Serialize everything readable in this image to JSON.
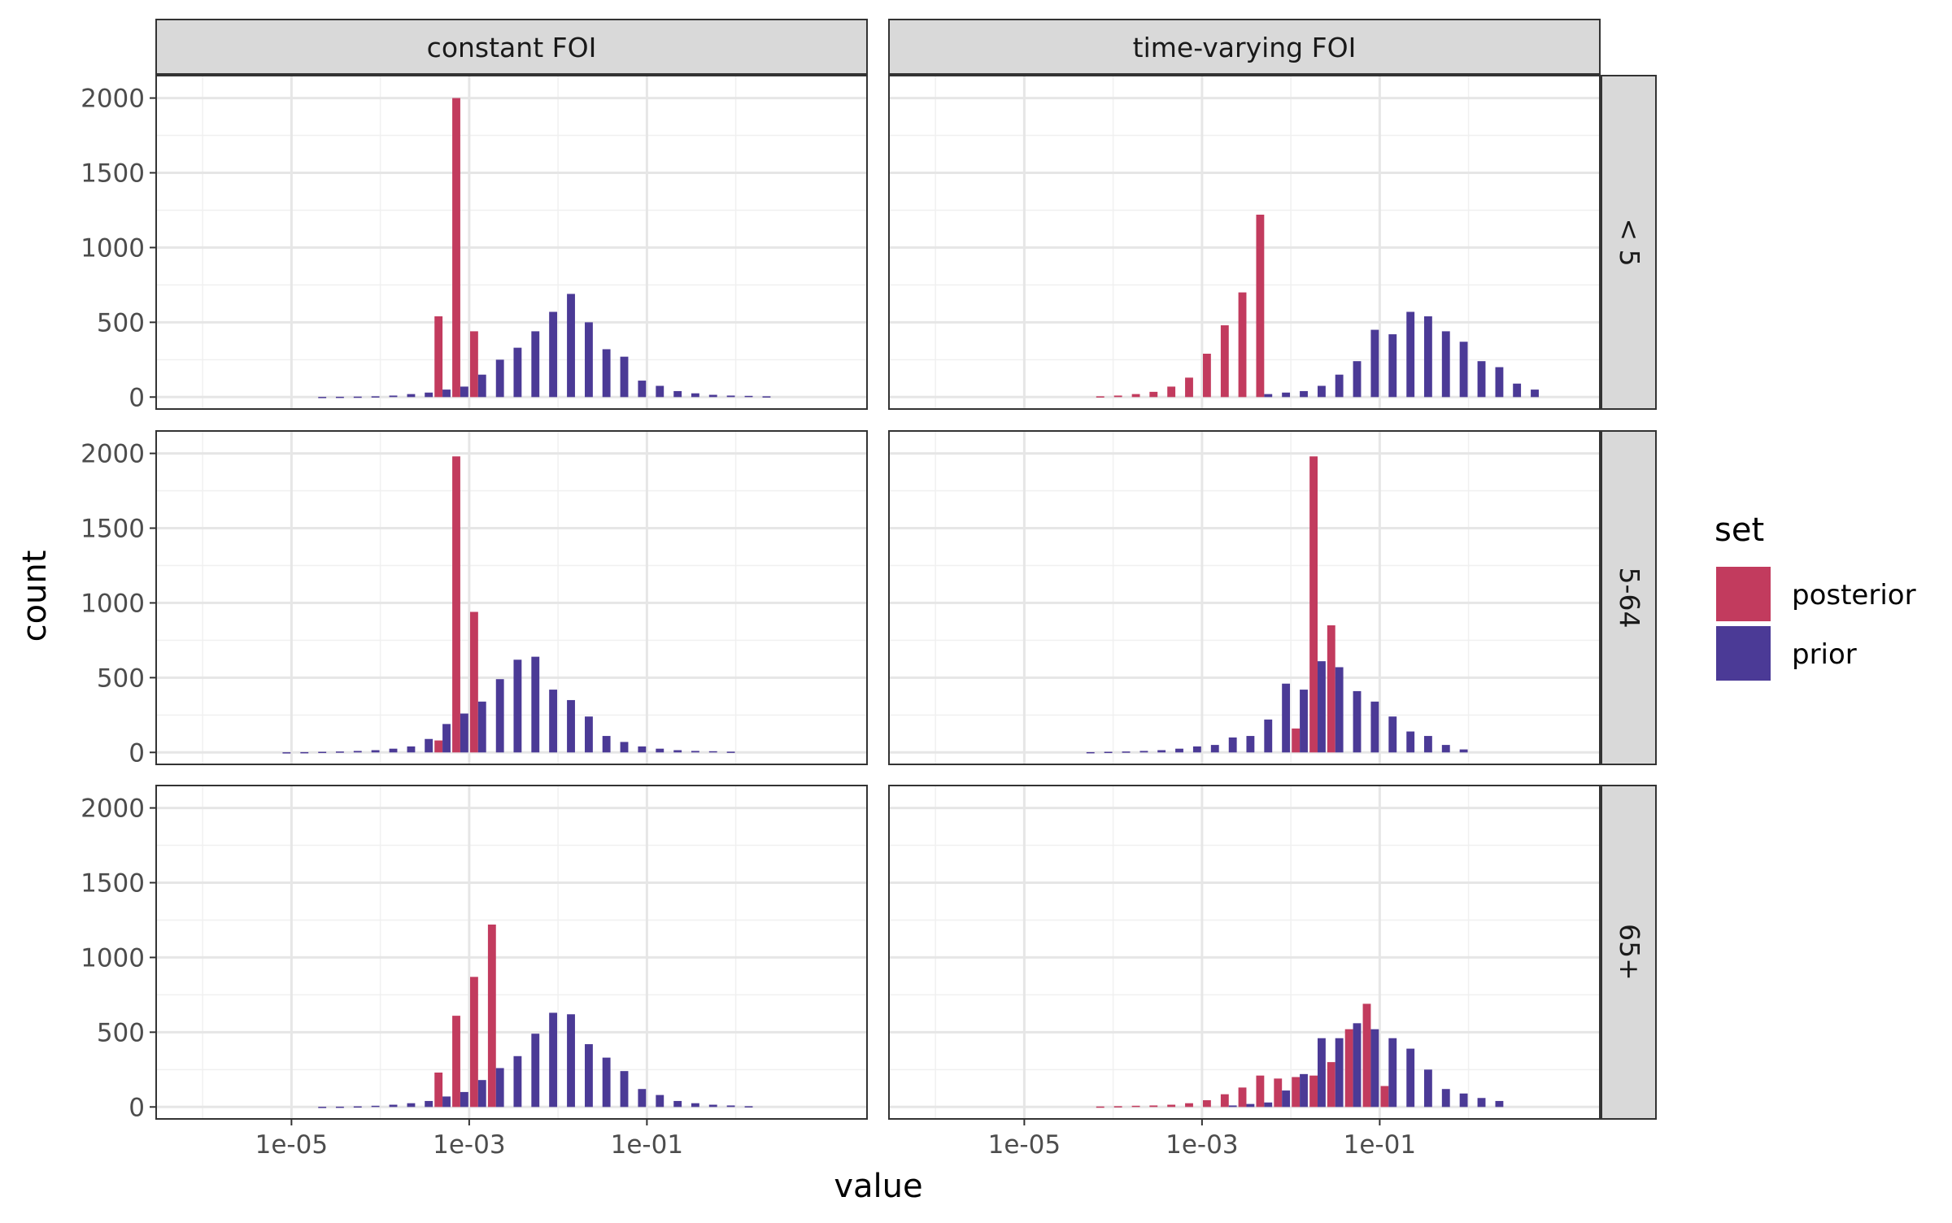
{
  "chart_data": {
    "type": "bar",
    "title": "",
    "xlabel": "value",
    "ylabel": "count",
    "x_scale": "log10",
    "xlim": [
      3e-07,
      30
    ],
    "ylim": [
      -80,
      2150
    ],
    "x_ticks": [
      {
        "value": 1e-05,
        "label": "1e-05"
      },
      {
        "value": 0.001,
        "label": "1e-03"
      },
      {
        "value": 0.1,
        "label": "1e-01"
      }
    ],
    "y_ticks": [
      {
        "value": 0,
        "label": "0"
      },
      {
        "value": 500,
        "label": "500"
      },
      {
        "value": 1000,
        "label": "1000"
      },
      {
        "value": 1500,
        "label": "1500"
      },
      {
        "value": 2000,
        "label": "2000"
      }
    ],
    "grid": true,
    "facet_columns": [
      "constant FOI",
      "time-varying FOI"
    ],
    "facet_rows": [
      "< 5",
      "5-64",
      "65+"
    ],
    "legend": {
      "title": "set",
      "placement": "right",
      "items": [
        {
          "label": "posterior",
          "color": "#C23B5E"
        },
        {
          "label": "prior",
          "color": "#4B3A96"
        }
      ]
    },
    "bin_centers": [
      7.94e-07,
      1.26e-06,
      2e-06,
      3.16e-06,
      5.01e-06,
      7.94e-06,
      1.26e-05,
      2e-05,
      3.16e-05,
      5.01e-05,
      7.94e-05,
      0.000126,
      0.0002,
      0.000316,
      0.000501,
      0.000794,
      0.00126,
      0.002,
      0.00316,
      0.00501,
      0.00794,
      0.0126,
      0.02,
      0.0316,
      0.0501,
      0.0794,
      0.126,
      0.2,
      0.316,
      0.501,
      0.794,
      1.26,
      2,
      3.16,
      5.01
    ],
    "panels": [
      {
        "column": "constant FOI",
        "row": "< 5",
        "posterior": [
          0,
          0,
          0,
          0,
          0,
          0,
          0,
          0,
          0,
          0,
          0,
          0,
          0,
          0,
          540,
          2000,
          440,
          0,
          0,
          0,
          0,
          0,
          0,
          0,
          0,
          0,
          0,
          0,
          0,
          0,
          0,
          0,
          0,
          0,
          0
        ],
        "prior": [
          0,
          0,
          0,
          0,
          0,
          0,
          0,
          1,
          2,
          3,
          5,
          10,
          20,
          30,
          50,
          70,
          150,
          250,
          330,
          440,
          570,
          690,
          500,
          320,
          270,
          110,
          75,
          40,
          25,
          15,
          10,
          8,
          5,
          0,
          0
        ]
      },
      {
        "column": "time-varying FOI",
        "row": "< 5",
        "posterior": [
          0,
          0,
          0,
          0,
          0,
          0,
          0,
          0,
          0,
          0,
          5,
          10,
          20,
          35,
          70,
          130,
          290,
          480,
          700,
          1220,
          0,
          0,
          0,
          0,
          0,
          0,
          0,
          0,
          0,
          0,
          0,
          0,
          0,
          0,
          0
        ],
        "prior": [
          0,
          0,
          0,
          0,
          0,
          0,
          0,
          0,
          0,
          0,
          0,
          0,
          0,
          0,
          0,
          0,
          0,
          0,
          0,
          20,
          30,
          40,
          75,
          150,
          240,
          450,
          420,
          570,
          540,
          440,
          370,
          240,
          200,
          90,
          50
        ]
      },
      {
        "column": "constant FOI",
        "row": "5-64",
        "posterior": [
          0,
          0,
          0,
          0,
          0,
          0,
          0,
          0,
          0,
          0,
          0,
          0,
          0,
          0,
          80,
          1980,
          940,
          0,
          0,
          0,
          0,
          0,
          0,
          0,
          0,
          0,
          0,
          0,
          0,
          0,
          0,
          0,
          0,
          0,
          0
        ],
        "prior": [
          0,
          0,
          0,
          0,
          0,
          1,
          2,
          4,
          6,
          10,
          15,
          25,
          40,
          90,
          190,
          260,
          340,
          490,
          620,
          640,
          420,
          350,
          240,
          110,
          70,
          40,
          25,
          15,
          10,
          8,
          5,
          0,
          0,
          0,
          0
        ]
      },
      {
        "column": "time-varying FOI",
        "row": "5-64",
        "posterior": [
          0,
          0,
          0,
          0,
          0,
          0,
          0,
          0,
          0,
          0,
          0,
          0,
          0,
          0,
          0,
          0,
          0,
          0,
          0,
          0,
          0,
          160,
          1980,
          850,
          0,
          0,
          0,
          0,
          0,
          0,
          0,
          0,
          0,
          0,
          0
        ],
        "prior": [
          0,
          0,
          0,
          0,
          0,
          0,
          0,
          0,
          0,
          2,
          4,
          6,
          10,
          15,
          25,
          40,
          50,
          100,
          110,
          220,
          460,
          420,
          610,
          570,
          410,
          340,
          240,
          140,
          110,
          50,
          20,
          0,
          0,
          0,
          0
        ]
      },
      {
        "column": "constant FOI",
        "row": "65+",
        "posterior": [
          0,
          0,
          0,
          0,
          0,
          0,
          0,
          0,
          0,
          0,
          0,
          0,
          0,
          0,
          230,
          610,
          870,
          1220,
          0,
          0,
          0,
          0,
          0,
          0,
          0,
          0,
          0,
          0,
          0,
          0,
          0,
          0,
          0,
          0,
          0
        ],
        "prior": [
          0,
          0,
          0,
          0,
          0,
          0,
          0,
          1,
          2,
          4,
          8,
          15,
          25,
          40,
          70,
          100,
          180,
          260,
          340,
          490,
          630,
          620,
          420,
          330,
          240,
          120,
          80,
          40,
          25,
          15,
          10,
          5,
          0,
          0,
          0
        ]
      },
      {
        "column": "time-varying FOI",
        "row": "65+",
        "posterior": [
          0,
          0,
          0,
          0,
          0,
          0,
          0,
          0,
          0,
          0,
          3,
          5,
          8,
          10,
          15,
          25,
          45,
          85,
          130,
          210,
          190,
          200,
          210,
          300,
          520,
          690,
          140,
          0,
          0,
          0,
          0,
          0,
          0,
          0,
          0
        ],
        "prior": [
          0,
          0,
          0,
          0,
          0,
          0,
          0,
          0,
          0,
          0,
          0,
          0,
          0,
          0,
          0,
          0,
          0,
          10,
          20,
          30,
          110,
          220,
          460,
          460,
          560,
          520,
          460,
          390,
          250,
          120,
          90,
          60,
          40,
          0,
          0
        ]
      }
    ]
  }
}
